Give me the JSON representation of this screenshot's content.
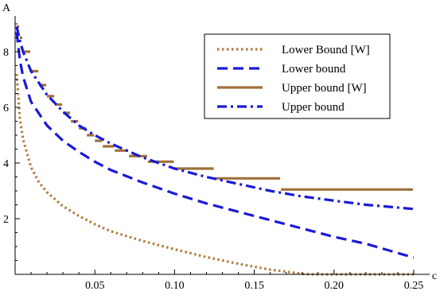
{
  "chart_data": {
    "type": "line",
    "xlabel": "c",
    "ylabel": "A",
    "xlim": [
      0,
      0.25
    ],
    "ylim": [
      0,
      9
    ],
    "x_ticks": [
      0.05,
      0.1,
      0.15,
      0.2,
      0.25
    ],
    "x_tick_labels": [
      "0.05",
      "0.10",
      "0.15",
      "0.20",
      "0.25"
    ],
    "y_ticks": [
      2,
      4,
      6,
      8
    ],
    "y_tick_labels": [
      "2",
      "4",
      "6",
      "8"
    ],
    "grid": false,
    "legend_position": "top-right",
    "series": [
      {
        "name": "Lower Bound [W]",
        "color": "#b07a3a",
        "style": "dotted",
        "points": [
          [
            0.001,
            7.2
          ],
          [
            0.003,
            5.6
          ],
          [
            0.005,
            4.85
          ],
          [
            0.01,
            3.85
          ],
          [
            0.015,
            3.3
          ],
          [
            0.02,
            2.95
          ],
          [
            0.03,
            2.45
          ],
          [
            0.04,
            2.1
          ],
          [
            0.05,
            1.8
          ],
          [
            0.06,
            1.55
          ],
          [
            0.08,
            1.2
          ],
          [
            0.1,
            0.9
          ],
          [
            0.12,
            0.62
          ],
          [
            0.14,
            0.38
          ],
          [
            0.16,
            0.17
          ],
          [
            0.18,
            0.02
          ],
          [
            0.185,
            0.0
          ],
          [
            0.25,
            0.0
          ]
        ]
      },
      {
        "name": "Lower bound",
        "color": "#1a1ad6",
        "style": "dashed",
        "points": [
          [
            0.001,
            8.7
          ],
          [
            0.003,
            7.7
          ],
          [
            0.005,
            7.1
          ],
          [
            0.01,
            6.2
          ],
          [
            0.02,
            5.35
          ],
          [
            0.03,
            4.8
          ],
          [
            0.04,
            4.4
          ],
          [
            0.05,
            4.05
          ],
          [
            0.06,
            3.75
          ],
          [
            0.08,
            3.3
          ],
          [
            0.1,
            2.9
          ],
          [
            0.12,
            2.55
          ],
          [
            0.14,
            2.25
          ],
          [
            0.16,
            1.95
          ],
          [
            0.18,
            1.65
          ],
          [
            0.2,
            1.35
          ],
          [
            0.22,
            1.1
          ],
          [
            0.25,
            0.6
          ]
        ]
      },
      {
        "name": "Upper bound [W]",
        "color": "#a0703a",
        "style": "steps",
        "points": [
          [
            0.001,
            8.9
          ],
          [
            0.003,
            8.5
          ],
          [
            0.005,
            8.0
          ],
          [
            0.01,
            7.3
          ],
          [
            0.015,
            6.8
          ],
          [
            0.02,
            6.4
          ],
          [
            0.025,
            6.1
          ],
          [
            0.03,
            5.8
          ],
          [
            0.035,
            5.5
          ],
          [
            0.04,
            5.25
          ],
          [
            0.045,
            5.0
          ],
          [
            0.05,
            4.8
          ],
          [
            0.055,
            4.6
          ],
          [
            0.0625,
            4.45
          ],
          [
            0.0714,
            4.25
          ],
          [
            0.0833,
            4.05
          ],
          [
            0.1,
            3.8
          ],
          [
            0.125,
            3.45
          ],
          [
            0.1667,
            3.05
          ],
          [
            0.25,
            3.05
          ]
        ]
      },
      {
        "name": "Upper bound",
        "color": "#1a1ad6",
        "style": "dashdot",
        "points": [
          [
            0.001,
            8.9
          ],
          [
            0.003,
            8.4
          ],
          [
            0.005,
            8.0
          ],
          [
            0.01,
            7.3
          ],
          [
            0.02,
            6.45
          ],
          [
            0.03,
            5.85
          ],
          [
            0.04,
            5.35
          ],
          [
            0.05,
            5.0
          ],
          [
            0.06,
            4.7
          ],
          [
            0.08,
            4.2
          ],
          [
            0.1,
            3.8
          ],
          [
            0.12,
            3.5
          ],
          [
            0.14,
            3.25
          ],
          [
            0.16,
            3.0
          ],
          [
            0.18,
            2.8
          ],
          [
            0.2,
            2.65
          ],
          [
            0.22,
            2.5
          ],
          [
            0.25,
            2.35
          ]
        ]
      }
    ]
  }
}
